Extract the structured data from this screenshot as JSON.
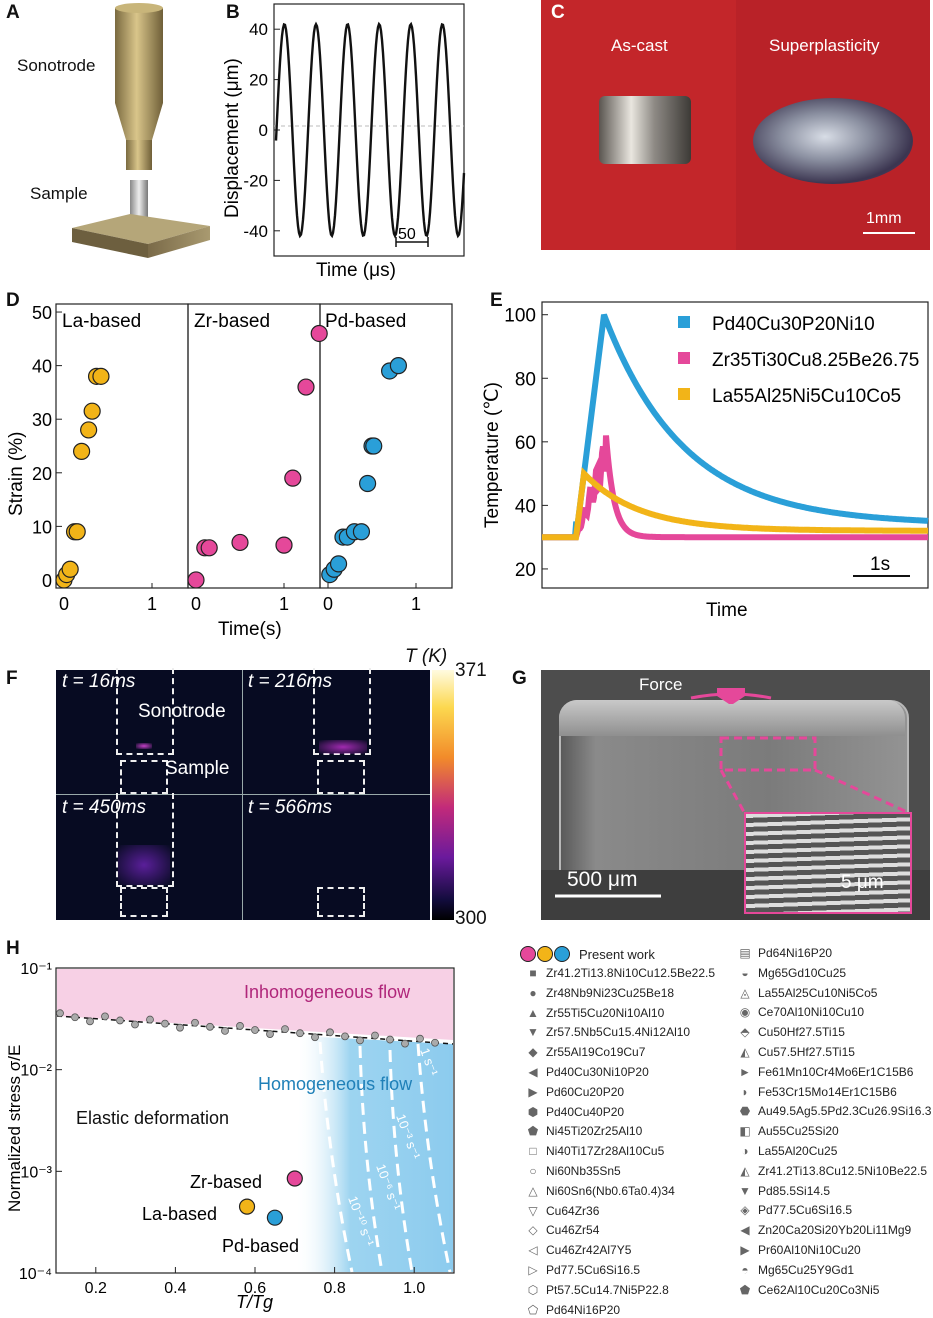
{
  "panels": {
    "A": {
      "letter": "A",
      "label_sonotrode": "Sonotrode",
      "label_sample": "Sample"
    },
    "B": {
      "letter": "B",
      "ylabel": "Displacement (μm)",
      "xlabel": "Time (μs)",
      "yticks": [
        "40",
        "20",
        "0",
        "-20",
        "-40"
      ],
      "scalebar_label": "50"
    },
    "C": {
      "letter": "C",
      "label_left": "As-cast",
      "label_right": "Superplasticity",
      "scalebar_label": "1mm"
    },
    "D": {
      "letter": "D",
      "ylabel": "Strain (%)",
      "xlabel": "Time(s)",
      "subpanels": [
        "La-based",
        "Zr-based",
        "Pd-based"
      ],
      "yticks": [
        "50",
        "40",
        "30",
        "20",
        "10",
        "0"
      ],
      "xticks": [
        "0",
        "1",
        "0",
        "1",
        "0",
        "1"
      ]
    },
    "E": {
      "letter": "E",
      "ylabel": "Temperature (℃)",
      "xlabel": "Time",
      "yticks": [
        "100",
        "80",
        "60",
        "40",
        "20"
      ],
      "scalebar_label": "1s",
      "legend": [
        "Pd40Cu30P20Ni10",
        "Zr35Ti30Cu8.25Be26.75",
        "La55Al25Ni5Cu10Co5"
      ]
    },
    "F": {
      "letter": "F",
      "frames": [
        "t = 16ms",
        "t = 216ms",
        "t = 450ms",
        "t = 566ms"
      ],
      "label_sonotrode": "Sonotrode",
      "label_sample": "Sample",
      "colorbar_title": "T (K)",
      "colorbar_max": "371",
      "colorbar_min": "300"
    },
    "G": {
      "letter": "G",
      "label_force": "Force",
      "scalebar_main": "500 μm",
      "scalebar_inset": "5 μm"
    },
    "H": {
      "letter": "H",
      "ylabel": "Normalized stress σ/E",
      "xlabel": "T/Tg",
      "region_inhom": "Inhomogeneous flow",
      "region_hom": "Homogeneous flow",
      "region_elastic": "Elastic deformation",
      "rates": [
        "1 s⁻¹",
        "10⁻³ s⁻¹",
        "10⁻⁶ s⁻¹",
        "10⁻¹⁰ s⁻¹"
      ],
      "yticks": [
        "10⁻¹",
        "10⁻²",
        "10⁻³",
        "10⁻⁴"
      ],
      "xticks": [
        "0.2",
        "0.4",
        "0.6",
        "0.8",
        "1.0"
      ],
      "point_labels": [
        "Zr-based",
        "La-based",
        "Pd-based"
      ]
    }
  },
  "colors": {
    "la": "#f2b418",
    "zr": "#e5489a",
    "pd": "#2a9fd8",
    "inhom": "#f7d0e5",
    "hom": "#9dd4f0"
  },
  "chart_data": [
    {
      "type": "line",
      "panel": "B",
      "x": [
        0,
        10,
        20,
        30,
        40,
        50,
        60,
        70,
        80,
        90,
        100,
        110,
        120,
        130,
        140,
        150,
        160,
        170,
        180
      ],
      "series": [
        {
          "values": [
            0,
            40,
            -40,
            40,
            -40,
            40,
            -40,
            40,
            -40,
            40,
            -40,
            40,
            -40,
            40,
            -40,
            40,
            -40,
            40,
            0
          ]
        }
      ],
      "ylim": [
        -50,
        50
      ]
    },
    {
      "type": "scatter",
      "panel": "D",
      "series": [
        {
          "name": "La-based",
          "x": [
            0.0,
            0.03,
            0.07,
            0.12,
            0.15,
            0.2,
            0.28,
            0.32,
            0.37,
            0.42
          ],
          "y": [
            0,
            1,
            2,
            9,
            9,
            24,
            28,
            31.5,
            38,
            38
          ]
        },
        {
          "name": "Zr-based",
          "x": [
            0,
            0.1,
            0.15,
            0.5,
            1.0,
            1.1,
            1.25,
            1.4
          ],
          "y": [
            0,
            6,
            6,
            7,
            6.5,
            19,
            36,
            46
          ]
        },
        {
          "name": "Pd-based",
          "x": [
            0.02,
            0.07,
            0.12,
            0.17,
            0.22,
            0.3,
            0.38,
            0.45,
            0.5,
            0.52,
            0.7,
            0.8
          ],
          "y": [
            1,
            2,
            3,
            8,
            8,
            9,
            9,
            18,
            25,
            25,
            39,
            40
          ]
        }
      ],
      "ylim": [
        0,
        50
      ]
    },
    {
      "type": "line",
      "panel": "E",
      "series": [
        {
          "name": "Pd40Cu30P20Ni10",
          "peak": 100,
          "baseline": 30,
          "final": 34
        },
        {
          "name": "Zr35Ti30Cu8.25Be26.75",
          "peak": 62,
          "baseline": 30,
          "final": 30
        },
        {
          "name": "La55Al25Ni5Cu10Co5",
          "peak": 50,
          "baseline": 30,
          "final": 32
        }
      ],
      "ylim": [
        20,
        105
      ]
    },
    {
      "type": "scatter",
      "panel": "H",
      "series": [
        {
          "name": "Zr-based",
          "x": [
            0.7
          ],
          "y": [
            0.00085
          ]
        },
        {
          "name": "La-based",
          "x": [
            0.58
          ],
          "y": [
            0.00045
          ]
        },
        {
          "name": "Pd-based",
          "x": [
            0.65
          ],
          "y": [
            0.00035
          ]
        }
      ],
      "xlim": [
        0.1,
        1.1
      ],
      "ylim": [
        0.0001,
        0.1
      ]
    }
  ],
  "legend_H": {
    "present": "Present work",
    "col1": [
      "Zr41.2Ti13.8Ni10Cu12.5Be22.5",
      "Zr48Nb9Ni23Cu25Be18",
      "Zr55Ti5Cu20Ni10Al10",
      "Zr57.5Nb5Cu15.4Ni12Al10",
      "Zr55Al19Co19Cu7",
      "Pd40Cu30Ni10P20",
      "Pd60Cu20P20",
      "Pd40Cu40P20",
      "Ni45Ti20Zr25Al10",
      "Ni40Ti17Zr28Al10Cu5",
      "Ni60Nb35Sn5",
      "Ni60Sn6(Nb0.6Ta0.4)34",
      "Cu64Zr36",
      "Cu46Zr54",
      "Cu46Zr42Al7Y5",
      "Pd77.5Cu6Si16.5",
      "Pt57.5Cu14.7Ni5P22.8",
      "Pd64Ni16P20"
    ],
    "col2": [
      "Pd64Ni16P20",
      "Mg65Gd10Cu25",
      "La55Al25Cu10Ni5Co5",
      "Ce70Al10Ni10Cu10",
      "Cu50Hf27.5Ti15",
      "Cu57.5Hf27.5Ti15",
      "Fe61Mn10Cr4Mo6Er1C15B6",
      "Fe53Cr15Mo14Er1C15B6",
      "Au49.5Ag5.5Pd2.3Cu26.9Si16.3",
      "Au55Cu25Si20",
      "La55Al20Cu25",
      "Zr41.2Ti13.8Cu12.5Ni10Be22.5",
      "Pd85.5Si14.5",
      "Pd77.5Cu6Si16.5",
      "Zn20Ca20Si20Yb20Li11Mg9",
      "Pr60Al10Ni10Cu20",
      "Mg65Cu25Y9Gd1",
      "Ce62Al10Cu20Co3Ni5"
    ],
    "sym1": [
      "■",
      "●",
      "▲",
      "▼",
      "◆",
      "◀",
      "▶",
      "⬢",
      "⬟",
      "□",
      "○",
      "△",
      "▽",
      "◇",
      "◁",
      "▷",
      "⬡",
      "⬠"
    ],
    "sym2": [
      "▤",
      "◒",
      "◬",
      "◉",
      "⬘",
      "◭",
      "►",
      "◗",
      "⬣",
      "◧",
      "◑",
      "◭",
      "▼",
      "◈",
      "◀",
      "▶",
      "◓",
      "⬟"
    ]
  }
}
